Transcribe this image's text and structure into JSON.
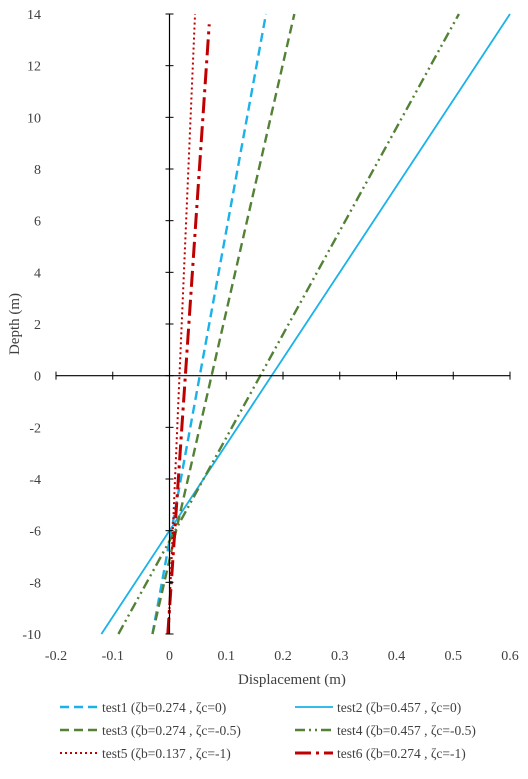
{
  "chart_data": {
    "type": "line",
    "title": "",
    "xlabel": "Displacement (m)",
    "ylabel": "Depth (m)",
    "xlim": [
      -0.2,
      0.6
    ],
    "ylim": [
      -10,
      14
    ],
    "xticks": [
      "-0.2",
      "-0.1",
      "0",
      "0.1",
      "0.2",
      "0.3",
      "0.4",
      "0.5",
      "0.6"
    ],
    "yticks": [
      "-10",
      "-8",
      "-6",
      "-4",
      "-2",
      "0",
      "2",
      "4",
      "6",
      "8",
      "10",
      "12",
      "14"
    ],
    "grid": false,
    "legend_position": "bottom",
    "series": [
      {
        "name": "test1 (ζb=0.274 , ζc=0)",
        "color": "#1ab2e8",
        "dash": "dashed",
        "x": [
          -0.03,
          0.17
        ],
        "y": [
          -10,
          14
        ]
      },
      {
        "name": "test2 (ζb=0.457 , ζc=0)",
        "color": "#1ab2e8",
        "dash": "solid",
        "x": [
          -0.12,
          0.6
        ],
        "y": [
          -10,
          14
        ]
      },
      {
        "name": "test3 (ζb=0.274 , ζc=-0.5)",
        "color": "#538135",
        "dash": "dashed",
        "x": [
          -0.03,
          0.22
        ],
        "y": [
          -10,
          14
        ]
      },
      {
        "name": "test4 (ζb=0.457 , ζc=-0.5)",
        "color": "#538135",
        "dash": "dash-dot-dot",
        "x": [
          -0.09,
          0.51
        ],
        "y": [
          -10,
          14
        ]
      },
      {
        "name": "test5 (ζb=0.137 , ζc=-1)",
        "color": "#c00000",
        "dash": "dotted",
        "x": [
          -0.002,
          0.045
        ],
        "y": [
          -10,
          14
        ]
      },
      {
        "name": "test6 (ζb=0.274 , ζc=-1)",
        "color": "#c00000",
        "dash": "long-dash-dot",
        "x": [
          -0.003,
          0.07
        ],
        "y": [
          -10,
          13.6
        ]
      }
    ]
  }
}
